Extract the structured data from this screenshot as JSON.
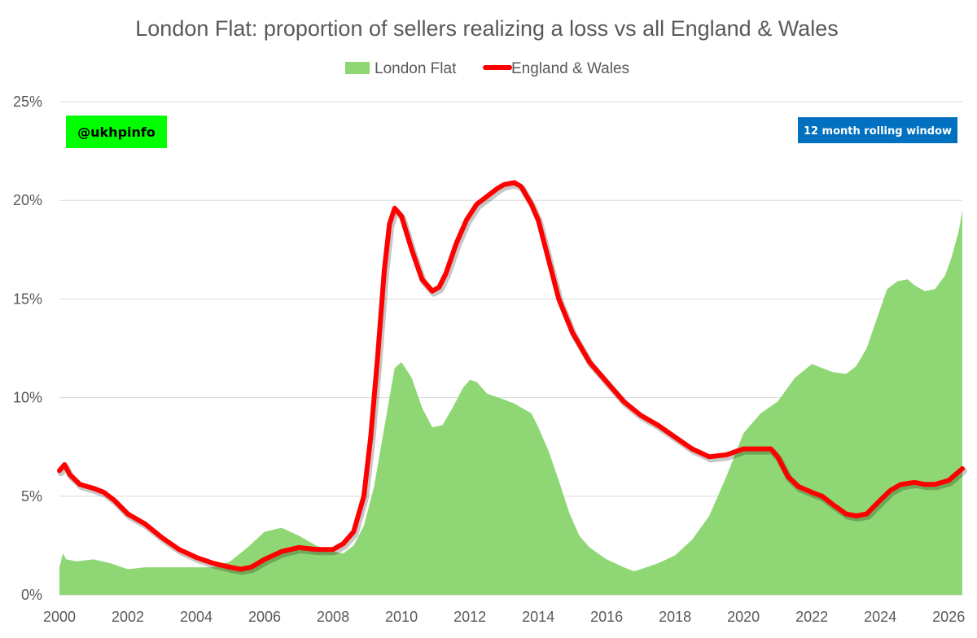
{
  "colors": {
    "area": "#8fd774",
    "line": "#ff0000",
    "badge_green": "#00ff00",
    "badge_blue": "#0070c0"
  },
  "badges": {
    "handle": "@ukhpinfo",
    "window": "12 month rolling window"
  },
  "chart_data": {
    "type": "area+line",
    "title": "London Flat: proportion of sellers realizing a loss vs all England & Wales",
    "xlabel": "",
    "ylabel": "",
    "xlim": [
      2000,
      2026.4
    ],
    "ylim": [
      0,
      25
    ],
    "y_tick_values": [
      0,
      5,
      10,
      15,
      20,
      25
    ],
    "y_tick_labels": [
      "0%",
      "5%",
      "10%",
      "15%",
      "20%",
      "25%"
    ],
    "x_tick_values": [
      2000,
      2002,
      2004,
      2006,
      2008,
      2010,
      2012,
      2014,
      2016,
      2018,
      2020,
      2022,
      2024,
      2026
    ],
    "x_tick_labels": [
      "2000",
      "2002",
      "2004",
      "2006",
      "2008",
      "2010",
      "2012",
      "2014",
      "2016",
      "2018",
      "2020",
      "2022",
      "2024",
      "2026"
    ],
    "grid": "horizontal",
    "legend_position": "top-center",
    "series": [
      {
        "name": "London Flat",
        "kind": "area",
        "x": [
          2000.0,
          2000.1,
          2000.2,
          2000.5,
          2001.0,
          2001.5,
          2002.0,
          2002.5,
          2003.0,
          2003.5,
          2004.0,
          2004.5,
          2005.0,
          2005.5,
          2006.0,
          2006.5,
          2007.0,
          2007.5,
          2008.0,
          2008.3,
          2008.6,
          2008.9,
          2009.2,
          2009.5,
          2009.8,
          2010.0,
          2010.3,
          2010.6,
          2010.9,
          2011.2,
          2011.5,
          2011.8,
          2012.0,
          2012.2,
          2012.5,
          2013.0,
          2013.3,
          2013.5,
          2013.8,
          2014.0,
          2014.3,
          2014.6,
          2014.9,
          2015.2,
          2015.5,
          2016.0,
          2016.5,
          2016.8,
          2017.0,
          2017.5,
          2018.0,
          2018.5,
          2019.0,
          2019.5,
          2020.0,
          2020.5,
          2021.0,
          2021.5,
          2022.0,
          2022.3,
          2022.6,
          2023.0,
          2023.3,
          2023.6,
          2023.9,
          2024.2,
          2024.5,
          2024.8,
          2025.0,
          2025.3,
          2025.6,
          2025.9,
          2026.1,
          2026.3,
          2026.4
        ],
        "values": [
          1.4,
          2.1,
          1.8,
          1.7,
          1.8,
          1.6,
          1.3,
          1.4,
          1.4,
          1.4,
          1.4,
          1.4,
          1.7,
          2.4,
          3.2,
          3.4,
          3.0,
          2.5,
          2.2,
          2.1,
          2.5,
          3.5,
          5.5,
          8.5,
          11.5,
          11.8,
          11.0,
          9.5,
          8.5,
          8.6,
          9.5,
          10.5,
          10.9,
          10.8,
          10.2,
          9.9,
          9.7,
          9.5,
          9.2,
          8.5,
          7.3,
          5.8,
          4.2,
          3.0,
          2.4,
          1.8,
          1.4,
          1.2,
          1.3,
          1.6,
          2.0,
          2.8,
          4.0,
          6.0,
          8.2,
          9.2,
          9.8,
          11.0,
          11.7,
          11.5,
          11.3,
          11.2,
          11.6,
          12.5,
          14.0,
          15.5,
          15.9,
          16.0,
          15.7,
          15.4,
          15.5,
          16.2,
          17.2,
          18.5,
          19.5
        ]
      },
      {
        "name": "England & Wales",
        "kind": "line",
        "x": [
          2000.0,
          2000.15,
          2000.3,
          2000.6,
          2001.0,
          2001.3,
          2001.6,
          2002.0,
          2002.5,
          2003.0,
          2003.5,
          2004.0,
          2004.5,
          2005.0,
          2005.3,
          2005.6,
          2006.0,
          2006.5,
          2007.0,
          2007.5,
          2007.8,
          2008.0,
          2008.3,
          2008.6,
          2008.9,
          2009.1,
          2009.3,
          2009.5,
          2009.65,
          2009.8,
          2010.0,
          2010.3,
          2010.6,
          2010.9,
          2011.1,
          2011.3,
          2011.6,
          2011.9,
          2012.2,
          2012.5,
          2012.8,
          2013.0,
          2013.3,
          2013.5,
          2013.8,
          2014.0,
          2014.3,
          2014.6,
          2015.0,
          2015.5,
          2016.0,
          2016.5,
          2017.0,
          2017.5,
          2018.0,
          2018.5,
          2019.0,
          2019.5,
          2020.0,
          2020.5,
          2020.8,
          2021.0,
          2021.3,
          2021.6,
          2022.0,
          2022.3,
          2022.6,
          2023.0,
          2023.3,
          2023.6,
          2024.0,
          2024.3,
          2024.6,
          2025.0,
          2025.3,
          2025.6,
          2026.0,
          2026.2,
          2026.4
        ],
        "values": [
          6.3,
          6.6,
          6.1,
          5.6,
          5.4,
          5.2,
          4.8,
          4.1,
          3.6,
          2.9,
          2.3,
          1.9,
          1.6,
          1.4,
          1.3,
          1.4,
          1.8,
          2.2,
          2.4,
          2.3,
          2.3,
          2.3,
          2.6,
          3.2,
          5.0,
          8.0,
          12.0,
          16.5,
          18.8,
          19.6,
          19.2,
          17.5,
          16.0,
          15.4,
          15.6,
          16.3,
          17.8,
          19.0,
          19.8,
          20.2,
          20.6,
          20.8,
          20.9,
          20.7,
          19.8,
          19.0,
          17.0,
          15.0,
          13.3,
          11.8,
          10.8,
          9.8,
          9.1,
          8.6,
          8.0,
          7.4,
          7.0,
          7.1,
          7.4,
          7.4,
          7.4,
          7.0,
          6.0,
          5.5,
          5.2,
          5.0,
          4.6,
          4.1,
          4.0,
          4.1,
          4.8,
          5.3,
          5.6,
          5.7,
          5.6,
          5.6,
          5.8,
          6.1,
          6.4
        ]
      }
    ]
  }
}
